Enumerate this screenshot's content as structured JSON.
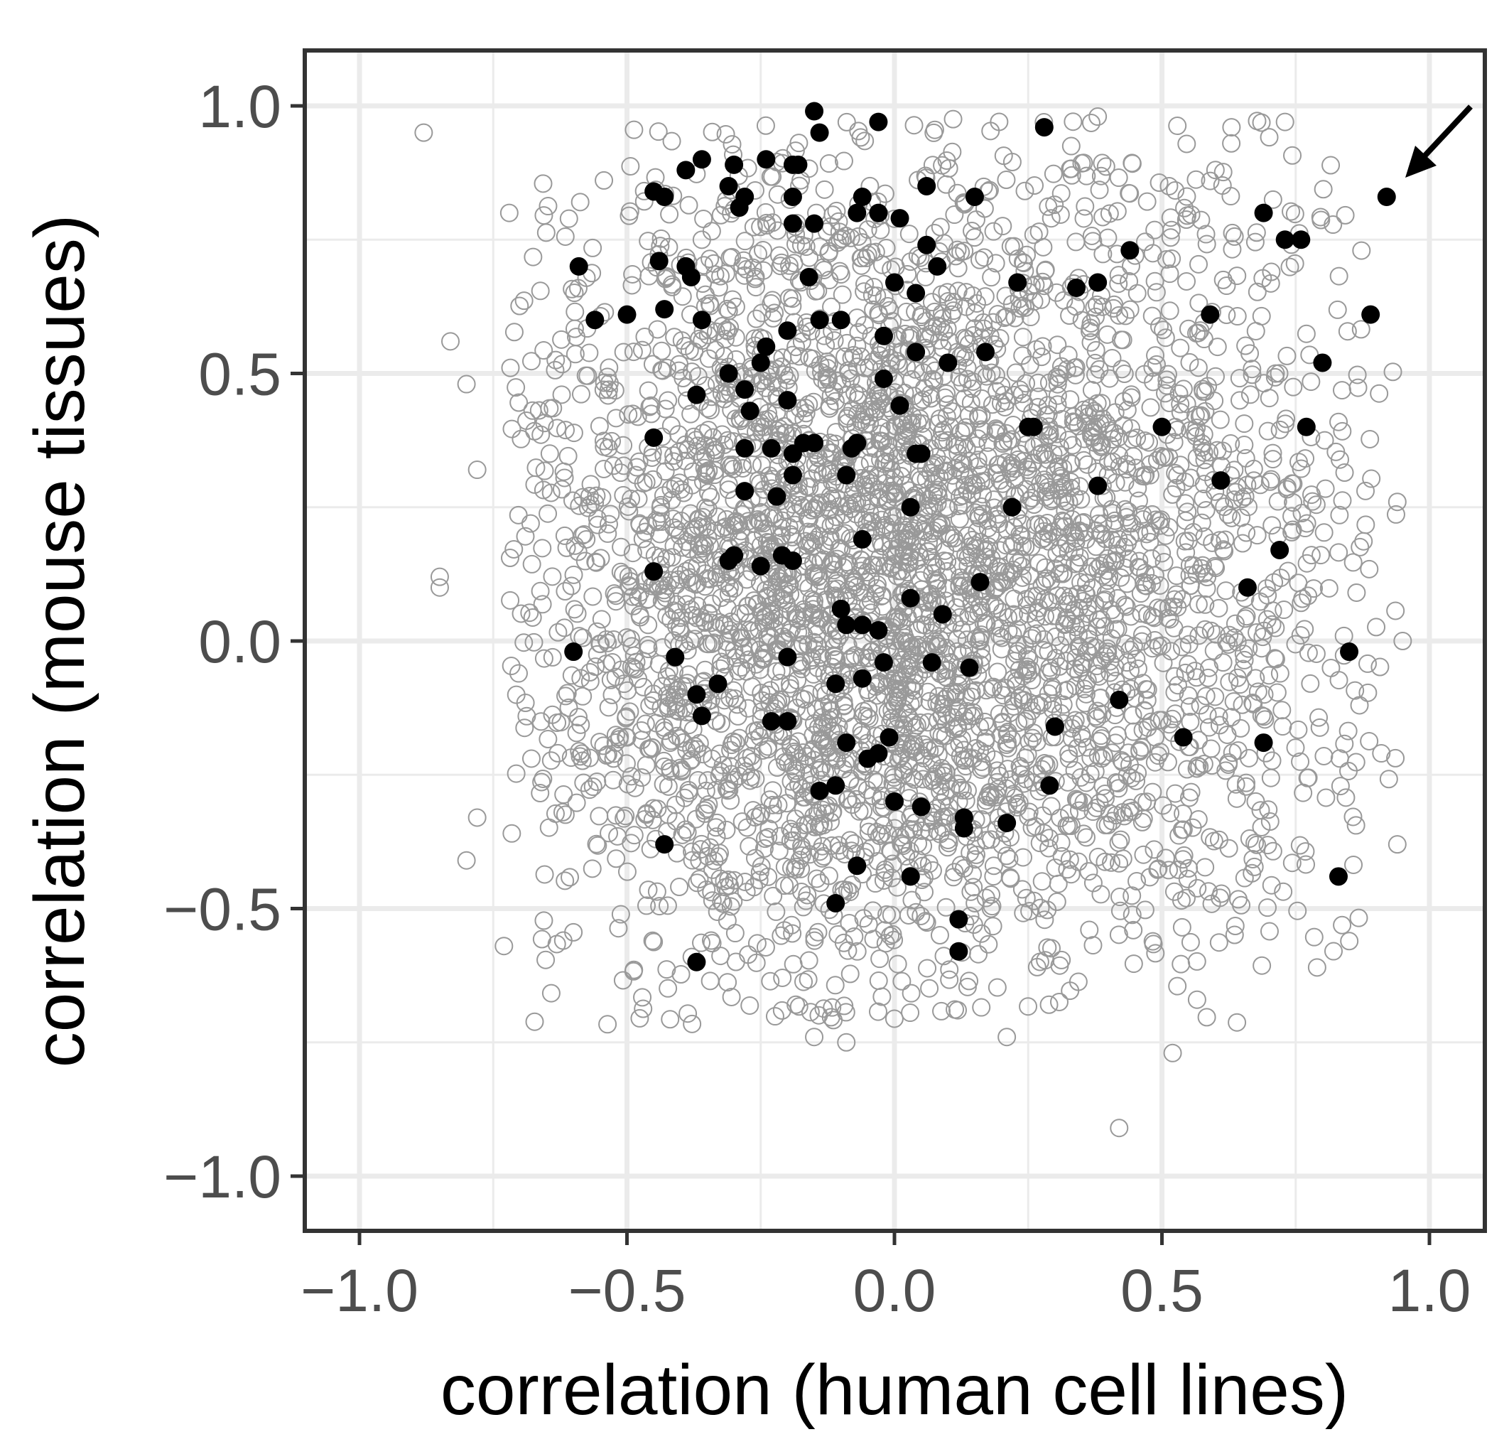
{
  "chart_data": {
    "type": "scatter",
    "title": "",
    "xlabel": "correlation (human cell lines)",
    "ylabel": "correlation (mouse tissues)",
    "xlim": [
      -1.1,
      1.1
    ],
    "ylim": [
      -1.1,
      1.1
    ],
    "x_ticks": [
      "−1.0",
      "−0.5",
      "0.0",
      "0.5",
      "1.0"
    ],
    "y_ticks": [
      "−1.0",
      "−0.5",
      "0.0",
      "0.5",
      "1.0"
    ],
    "x_tick_values": [
      -1,
      -0.5,
      0,
      0.5,
      1
    ],
    "y_tick_values": [
      -1,
      -0.5,
      0,
      0.5,
      1
    ],
    "grid": true,
    "legend": "none",
    "colors": {
      "background": "#ffffff",
      "grid": "#ebebeb",
      "frame": "#333333",
      "open_points": "#999999",
      "filled_points": "#000000"
    },
    "annotation": {
      "type": "arrow",
      "points_to": [
        0.92,
        0.83
      ]
    },
    "series": [
      {
        "style": "open-circle",
        "color": "#999999",
        "description_of_density": "dense cloud of several thousand points, concentrated around x -0.5..0.5, y -0.5..0.9",
        "points": [
          [
            -0.88,
            0.95
          ],
          [
            -0.85,
            0.1
          ],
          [
            -0.85,
            0.12
          ],
          [
            -0.8,
            0.48
          ],
          [
            -0.8,
            -0.41
          ],
          [
            -0.73,
            -0.57
          ],
          [
            0.52,
            -0.77
          ],
          [
            0.42,
            -0.91
          ],
          [
            0.94,
            -0.38
          ],
          [
            0.95,
            0.0
          ],
          [
            0.94,
            0.26
          ],
          [
            -0.09,
            -0.75
          ],
          [
            -0.15,
            -0.74
          ],
          [
            0.21,
            -0.74
          ],
          [
            0.79,
            -0.61
          ],
          [
            -0.83,
            0.56
          ],
          [
            -0.72,
            0.8
          ],
          [
            -0.78,
            -0.33
          ],
          [
            -0.78,
            0.32
          ],
          [
            0.63,
            0.96
          ],
          [
            0.73,
            0.97
          ],
          [
            0.38,
            0.98
          ]
        ]
      },
      {
        "style": "filled-circle",
        "color": "#000000",
        "points": [
          [
            -0.15,
            0.99
          ],
          [
            -0.03,
            0.97
          ],
          [
            0.28,
            0.96
          ],
          [
            -0.14,
            0.95
          ],
          [
            0.92,
            0.83
          ],
          [
            -0.36,
            0.9
          ],
          [
            -0.39,
            0.88
          ],
          [
            -0.3,
            0.89
          ],
          [
            -0.24,
            0.9
          ],
          [
            -0.19,
            0.89
          ],
          [
            -0.18,
            0.89
          ],
          [
            -0.45,
            0.84
          ],
          [
            -0.43,
            0.83
          ],
          [
            -0.31,
            0.85
          ],
          [
            -0.28,
            0.83
          ],
          [
            -0.29,
            0.81
          ],
          [
            -0.19,
            0.83
          ],
          [
            -0.06,
            0.83
          ],
          [
            0.06,
            0.85
          ],
          [
            0.15,
            0.83
          ],
          [
            -0.07,
            0.8
          ],
          [
            -0.03,
            0.8
          ],
          [
            0.01,
            0.79
          ],
          [
            -0.19,
            0.78
          ],
          [
            -0.15,
            0.78
          ],
          [
            0.69,
            0.8
          ],
          [
            0.73,
            0.75
          ],
          [
            0.76,
            0.75
          ],
          [
            0.06,
            0.74
          ],
          [
            0.44,
            0.73
          ],
          [
            -0.59,
            0.7
          ],
          [
            -0.44,
            0.71
          ],
          [
            -0.39,
            0.7
          ],
          [
            -0.38,
            0.68
          ],
          [
            -0.16,
            0.68
          ],
          [
            0.08,
            0.7
          ],
          [
            0.0,
            0.67
          ],
          [
            0.23,
            0.67
          ],
          [
            0.34,
            0.66
          ],
          [
            0.38,
            0.67
          ],
          [
            0.04,
            0.65
          ],
          [
            -0.56,
            0.6
          ],
          [
            -0.5,
            0.61
          ],
          [
            -0.43,
            0.62
          ],
          [
            -0.36,
            0.6
          ],
          [
            -0.14,
            0.6
          ],
          [
            -0.1,
            0.6
          ],
          [
            0.59,
            0.61
          ],
          [
            0.89,
            0.61
          ],
          [
            -0.2,
            0.58
          ],
          [
            -0.02,
            0.57
          ],
          [
            -0.24,
            0.55
          ],
          [
            -0.25,
            0.52
          ],
          [
            0.04,
            0.54
          ],
          [
            0.1,
            0.52
          ],
          [
            0.17,
            0.54
          ],
          [
            0.8,
            0.52
          ],
          [
            -0.31,
            0.5
          ],
          [
            -0.02,
            0.49
          ],
          [
            -0.28,
            0.47
          ],
          [
            -0.37,
            0.46
          ],
          [
            -0.27,
            0.43
          ],
          [
            -0.2,
            0.45
          ],
          [
            0.01,
            0.44
          ],
          [
            0.25,
            0.4
          ],
          [
            0.26,
            0.4
          ],
          [
            0.5,
            0.4
          ],
          [
            0.77,
            0.4
          ],
          [
            -0.45,
            0.38
          ],
          [
            -0.17,
            0.37
          ],
          [
            -0.15,
            0.37
          ],
          [
            -0.23,
            0.36
          ],
          [
            -0.28,
            0.36
          ],
          [
            -0.19,
            0.35
          ],
          [
            -0.07,
            0.37
          ],
          [
            -0.08,
            0.36
          ],
          [
            0.04,
            0.35
          ],
          [
            0.05,
            0.35
          ],
          [
            -0.19,
            0.31
          ],
          [
            -0.09,
            0.31
          ],
          [
            0.61,
            0.3
          ],
          [
            0.38,
            0.29
          ],
          [
            -0.28,
            0.28
          ],
          [
            -0.22,
            0.27
          ],
          [
            0.03,
            0.25
          ],
          [
            0.22,
            0.25
          ],
          [
            -0.06,
            0.19
          ],
          [
            0.72,
            0.17
          ],
          [
            -0.3,
            0.16
          ],
          [
            -0.31,
            0.15
          ],
          [
            -0.21,
            0.16
          ],
          [
            -0.19,
            0.15
          ],
          [
            -0.25,
            0.14
          ],
          [
            -0.45,
            0.13
          ],
          [
            0.16,
            0.11
          ],
          [
            0.66,
            0.1
          ],
          [
            0.03,
            0.08
          ],
          [
            -0.1,
            0.06
          ],
          [
            -0.09,
            0.03
          ],
          [
            -0.06,
            0.03
          ],
          [
            -0.03,
            0.02
          ],
          [
            0.09,
            0.05
          ],
          [
            -0.6,
            -0.02
          ],
          [
            -0.41,
            -0.03
          ],
          [
            -0.2,
            -0.03
          ],
          [
            -0.02,
            -0.04
          ],
          [
            0.07,
            -0.04
          ],
          [
            0.14,
            -0.05
          ],
          [
            0.85,
            -0.02
          ],
          [
            -0.33,
            -0.08
          ],
          [
            -0.11,
            -0.08
          ],
          [
            -0.06,
            -0.07
          ],
          [
            -0.37,
            -0.1
          ],
          [
            0.42,
            -0.11
          ],
          [
            -0.36,
            -0.14
          ],
          [
            -0.23,
            -0.15
          ],
          [
            -0.2,
            -0.15
          ],
          [
            0.3,
            -0.16
          ],
          [
            -0.01,
            -0.18
          ],
          [
            0.54,
            -0.18
          ],
          [
            -0.09,
            -0.19
          ],
          [
            0.69,
            -0.19
          ],
          [
            -0.03,
            -0.21
          ],
          [
            -0.05,
            -0.22
          ],
          [
            -0.11,
            -0.27
          ],
          [
            -0.14,
            -0.28
          ],
          [
            0.29,
            -0.27
          ],
          [
            0.0,
            -0.3
          ],
          [
            0.05,
            -0.31
          ],
          [
            0.13,
            -0.33
          ],
          [
            0.13,
            -0.35
          ],
          [
            0.21,
            -0.34
          ],
          [
            -0.43,
            -0.38
          ],
          [
            -0.07,
            -0.42
          ],
          [
            0.03,
            -0.44
          ],
          [
            0.83,
            -0.44
          ],
          [
            -0.11,
            -0.49
          ],
          [
            0.12,
            -0.52
          ],
          [
            0.12,
            -0.58
          ],
          [
            -0.37,
            -0.6
          ]
        ]
      }
    ]
  }
}
